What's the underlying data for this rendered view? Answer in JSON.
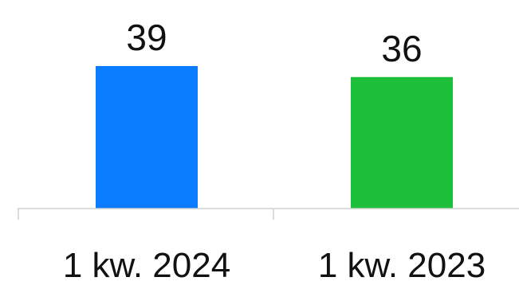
{
  "chart_data": {
    "type": "bar",
    "title": "",
    "xlabel": "",
    "ylabel": "",
    "categories": [
      "1 kw. 2024",
      "1 kw. 2023"
    ],
    "values": [
      39,
      36
    ],
    "value_labels": [
      "39",
      "36"
    ],
    "colors": [
      "#0a7cff",
      "#1dbf3a"
    ],
    "ylim": [
      0,
      39
    ],
    "grid": false,
    "legend": "none"
  }
}
